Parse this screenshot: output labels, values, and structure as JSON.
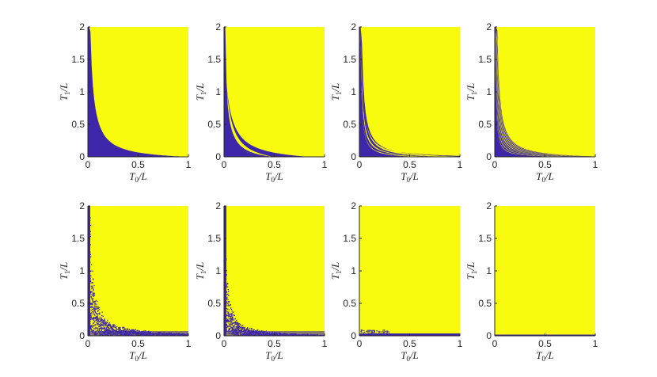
{
  "colors": {
    "yellow": "#f9fb0e",
    "purple": "#3e26a8",
    "axis": "#262626"
  },
  "chart_data": [
    {
      "type": "heatmap",
      "row": 1,
      "col": 1,
      "xlabel": "T0/L",
      "ylabel": "T1/L",
      "xlim": [
        0,
        1
      ],
      "ylim": [
        0,
        2
      ],
      "xticks": [
        "0",
        "0.5",
        "1"
      ],
      "yticks": [
        "0",
        "0.5",
        "1",
        "1.5",
        "2"
      ],
      "purple_region": "region below curve T1 ≈ 0.05/T0 - 0.05 (lower-left)",
      "boundary_curve": [
        [
          0.025,
          2.0
        ],
        [
          0.1,
          1.0
        ],
        [
          0.2,
          0.5
        ],
        [
          0.5,
          0.15
        ],
        [
          1.0,
          0.0
        ]
      ]
    },
    {
      "type": "heatmap",
      "row": 1,
      "col": 2,
      "xlabel": "T0/L",
      "ylabel": "T1/L",
      "xlim": [
        0,
        1
      ],
      "ylim": [
        0,
        2
      ],
      "xticks": [
        "0",
        "0.5",
        "1"
      ],
      "yticks": [
        "0",
        "0.5",
        "1",
        "1.5",
        "2"
      ],
      "purple_region": "two hyperbolic bands",
      "band_count": 2
    },
    {
      "type": "heatmap",
      "row": 1,
      "col": 3,
      "xlabel": "T0/L",
      "ylabel": "T1/L",
      "xlim": [
        0,
        1
      ],
      "ylim": [
        0,
        2
      ],
      "xticks": [
        "0",
        "0.5",
        "1"
      ],
      "yticks": [
        "0",
        "0.5",
        "1",
        "1.5",
        "2"
      ],
      "purple_region": "four hyperbolic bands",
      "band_count": 4
    },
    {
      "type": "heatmap",
      "row": 1,
      "col": 4,
      "xlabel": "T0/L",
      "ylabel": "T1/L",
      "xlim": [
        0,
        1
      ],
      "ylim": [
        0,
        2
      ],
      "xticks": [
        "0",
        "0.5",
        "1"
      ],
      "yticks": [
        "0",
        "0.5",
        "1",
        "1.5",
        "2"
      ],
      "purple_region": "many thin hyperbolic bands",
      "band_count": 8
    },
    {
      "type": "heatmap",
      "row": 2,
      "col": 1,
      "xlabel": "T0/L",
      "ylabel": "T1/L",
      "xlim": [
        0,
        1
      ],
      "ylim": [
        0,
        2
      ],
      "xticks": [
        "0",
        "0.5",
        "1"
      ],
      "yticks": [
        "0",
        "0.5",
        "1",
        "1.5",
        "2"
      ],
      "purple_region": "dense fragmented bands near axes"
    },
    {
      "type": "heatmap",
      "row": 2,
      "col": 2,
      "xlabel": "T0/L",
      "ylabel": "T1/L",
      "xlim": [
        0,
        1
      ],
      "ylim": [
        0,
        2
      ],
      "xticks": [
        "0",
        "0.5",
        "1"
      ],
      "yticks": [
        "0",
        "0.5",
        "1",
        "1.5",
        "2"
      ],
      "purple_region": "speckled region near axes"
    },
    {
      "type": "heatmap",
      "row": 2,
      "col": 3,
      "xlabel": "T0/L",
      "ylabel": "T1/L",
      "xlim": [
        0,
        1
      ],
      "ylim": [
        0,
        2
      ],
      "xticks": [
        "0",
        "0.5",
        "1"
      ],
      "yticks": [
        "0",
        "0.5",
        "1",
        "1.5",
        "2"
      ],
      "purple_region": "thin strip along bottom edge"
    },
    {
      "type": "heatmap",
      "row": 2,
      "col": 4,
      "xlabel": "T0/L",
      "ylabel": "T1/L",
      "xlim": [
        0,
        1
      ],
      "ylim": [
        0,
        2
      ],
      "xticks": [
        "0",
        "0.5",
        "1"
      ],
      "yticks": [
        "0",
        "0.5",
        "1",
        "1.5",
        "2"
      ],
      "purple_region": "almost entirely yellow"
    }
  ]
}
